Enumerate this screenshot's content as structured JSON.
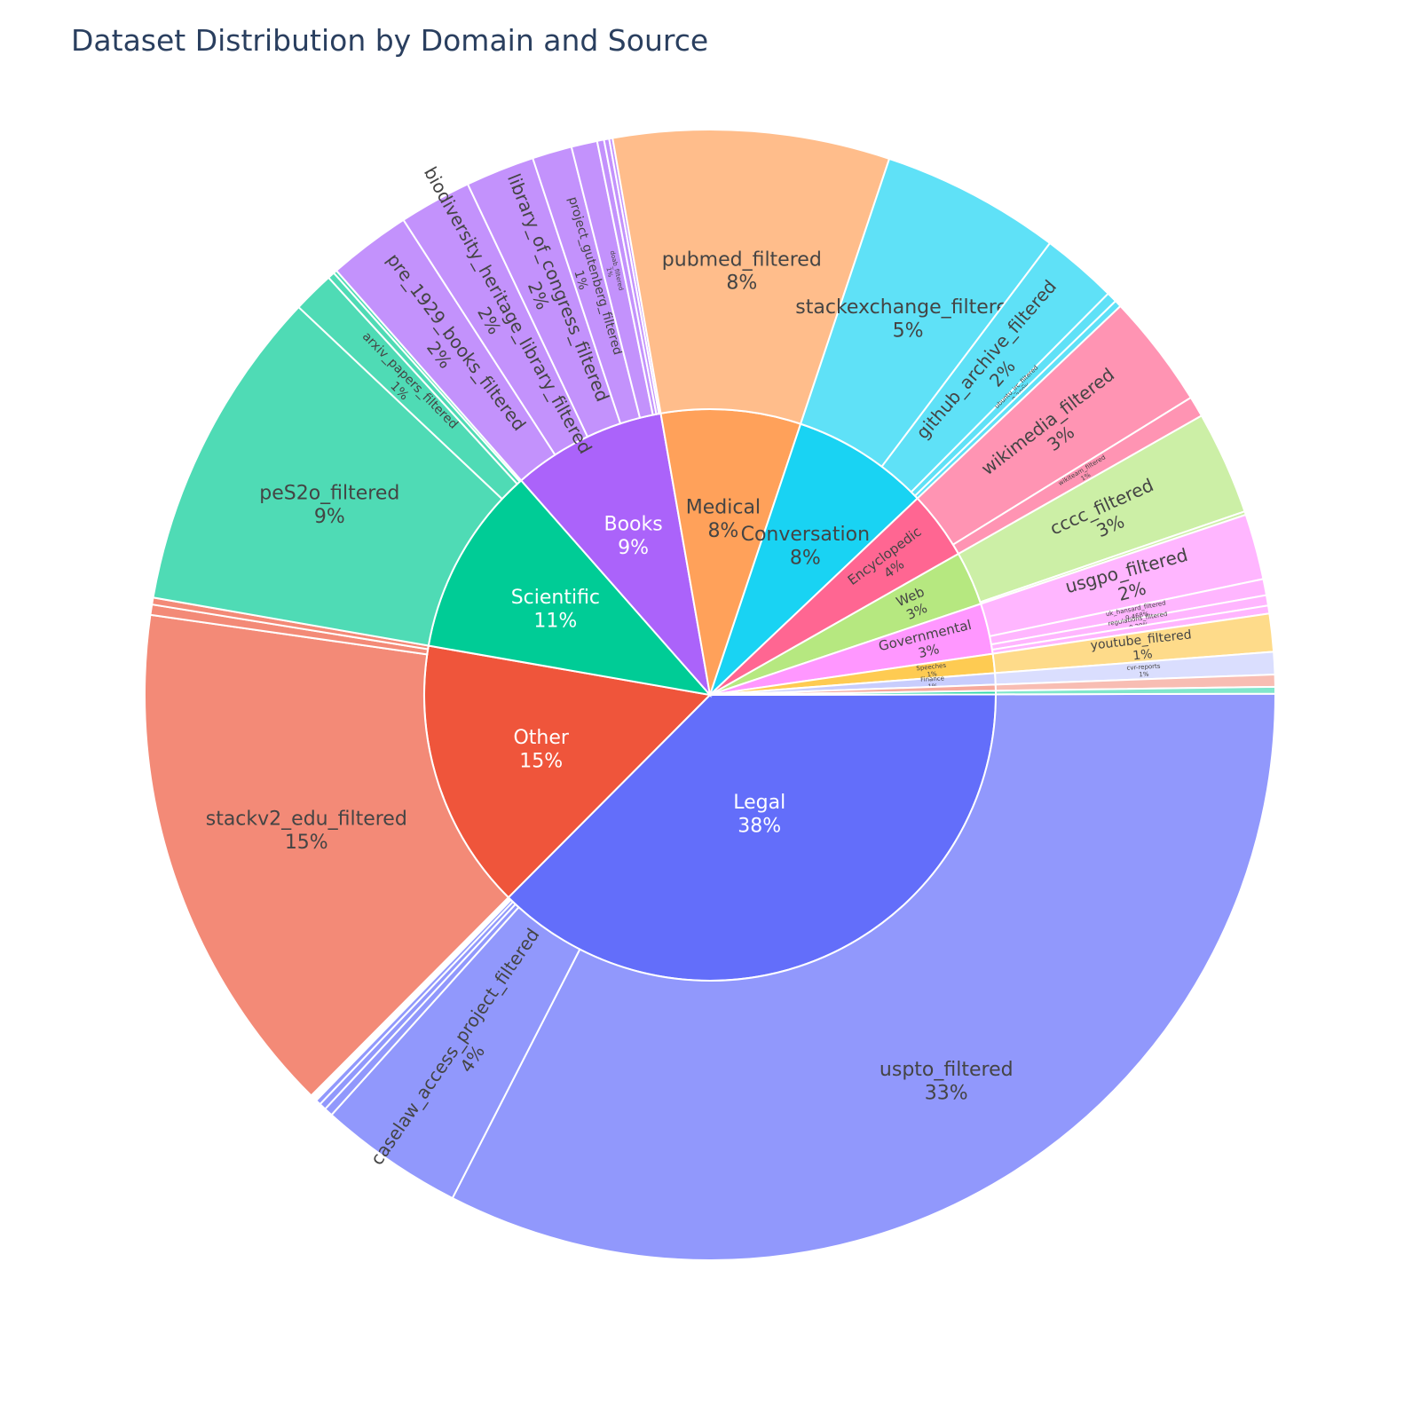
{
  "chart_data": {
    "type": "sunburst",
    "title": "Dataset Distribution by Domain and Source",
    "unit": "percent of total",
    "domains": [
      {
        "name": "Legal",
        "label_pct": "38%",
        "value": 38.0,
        "color": "#636efa",
        "child_color": "#9198fc",
        "children": [
          {
            "name": "uspto_filtered",
            "value": 33.0,
            "label_pct": "33%"
          },
          {
            "name": "caselaw_access_project_filtered",
            "value": 4.2,
            "label_pct": "4%"
          },
          {
            "name": "",
            "value": 0.25
          },
          {
            "name": "",
            "value": 0.2
          },
          {
            "name": "",
            "value": 0.15
          }
        ]
      },
      {
        "name": "Other",
        "label_pct": "15%",
        "value": 15.5,
        "color": "#ef553b",
        "child_color": "#f38a77",
        "children": [
          {
            "name": "stackv2_edu_filtered",
            "value": 15.0,
            "label_pct": "15%"
          },
          {
            "name": "",
            "value": 0.3
          },
          {
            "name": "",
            "value": 0.2
          }
        ]
      },
      {
        "name": "Scientific",
        "label_pct": "11%",
        "value": 10.9,
        "color": "#00cc96",
        "child_color": "#4fdbb5",
        "children": [
          {
            "name": "peS2o_filtered",
            "value": 9.4,
            "label_pct": "9%"
          },
          {
            "name": "arxiv_papers_filtered",
            "value": 1.2,
            "label_pct": "1%"
          },
          {
            "name": "",
            "value": 0.2
          },
          {
            "name": "",
            "value": 0.1
          }
        ]
      },
      {
        "name": "Books",
        "label_pct": "9%",
        "value": 8.85,
        "color": "#ab63fa",
        "child_color": "#c392fc",
        "children": [
          {
            "name": "pre_1929_books_filtered",
            "value": 2.4,
            "label_pct": "2%"
          },
          {
            "name": "biodiversity_heritage_library_filtered",
            "value": 2.1,
            "label_pct": "2%"
          },
          {
            "name": "library_of_congress_filtered",
            "value": 2.0,
            "label_pct": "2%"
          },
          {
            "name": "project_gutenberg_filtered",
            "value": 1.15,
            "label_pct": "1%"
          },
          {
            "name": "doab_filtered",
            "value": 0.75,
            "label_pct": "1%"
          },
          {
            "name": "",
            "value": 0.2
          },
          {
            "name": "",
            "value": 0.15
          },
          {
            "name": "",
            "value": 0.1
          }
        ]
      },
      {
        "name": "Medical",
        "label_pct": "8%",
        "value": 8.0,
        "color": "#ffa15a",
        "child_color": "#ffbd8b",
        "children": [
          {
            "name": "pubmed_filtered",
            "value": 8.0,
            "label_pct": "8%"
          }
        ]
      },
      {
        "name": "Conversation",
        "label_pct": "8%",
        "value": 7.9,
        "color": "#19d3f3",
        "child_color": "#5fe1f7",
        "children": [
          {
            "name": "stackexchange_filtered",
            "value": 5.2,
            "label_pct": "5%"
          },
          {
            "name": "github_archive_filtered",
            "value": 2.2,
            "label_pct": "2%"
          },
          {
            "name": "ubuntu_irc_filtered",
            "value": 0.3,
            "label_pct": "0.309%"
          },
          {
            "name": "",
            "value": 0.2
          }
        ]
      },
      {
        "name": "Encyclopedic",
        "label_pct": "4%",
        "value": 3.9,
        "color": "#ff6692",
        "child_color": "#ff94b3",
        "children": [
          {
            "name": "wikimedia_filtered",
            "value": 3.3,
            "label_pct": "3%"
          },
          {
            "name": "wikiteam_filtered",
            "value": 0.6,
            "label_pct": "1%"
          }
        ]
      },
      {
        "name": "Web",
        "label_pct": "3%",
        "value": 3.1,
        "color": "#b6e880",
        "child_color": "#ccefa6",
        "children": [
          {
            "name": "cccc_filtered",
            "value": 3.0,
            "label_pct": "3%"
          },
          {
            "name": "",
            "value": 0.1
          }
        ]
      },
      {
        "name": "Governmental",
        "label_pct": "3%",
        "value": 2.9,
        "color": "#ff97ff",
        "child_color": "#ffb6ff",
        "children": [
          {
            "name": "usgpo_filtered",
            "value": 1.9,
            "label_pct": "2%"
          },
          {
            "name": "uk_hansard_filtered",
            "value": 0.47,
            "label_pct": "0.468%"
          },
          {
            "name": "regulations_filtered",
            "value": 0.3,
            "label_pct": "0.29%"
          },
          {
            "name": "",
            "value": 0.23
          }
        ]
      },
      {
        "name": "Speeches",
        "label_pct": "1%",
        "value": 1.1,
        "color": "#fecb52",
        "child_color": "#fedb8a",
        "children": [
          {
            "name": "youtube_filtered",
            "value": 1.1,
            "label_pct": "1%"
          }
        ]
      },
      {
        "name": "Finance",
        "label_pct": "1%",
        "value": 0.65,
        "color": "#c8cdfd",
        "child_color": "#dadefe",
        "children": [
          {
            "name": "cvr-reports",
            "value": 0.65,
            "label_pct": "1%"
          }
        ]
      },
      {
        "name": "",
        "value": 0.35,
        "color": "#f6a99c",
        "child_color": "#f8bdb3",
        "children": [
          {
            "name": "",
            "value": 0.35
          }
        ]
      },
      {
        "name": "",
        "value": 0.2,
        "color": "#33d6ab",
        "child_color": "#80e6cc",
        "children": [
          {
            "name": "",
            "value": 0.2
          }
        ]
      }
    ]
  }
}
